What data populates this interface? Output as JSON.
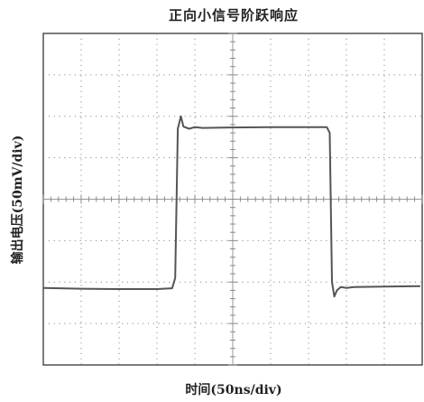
{
  "chart_data": {
    "type": "line",
    "title": "正向小信号阶跃响应",
    "xlabel": "时间(50ns/div)",
    "ylabel": "输出电压(50mV/div)",
    "x_unit": "div",
    "y_unit": "div",
    "xlim": [
      0,
      10
    ],
    "ylim": [
      -4,
      4
    ],
    "grid": "dotted oscilloscope graticule with center crosshair",
    "line_color": "#555555",
    "series": [
      {
        "x": [
          0,
          1,
          2,
          3,
          3.4,
          3.48,
          3.55,
          3.63,
          3.7,
          3.85,
          4.0,
          4.2,
          5.0,
          6.0,
          7.0,
          7.48,
          7.56,
          7.62,
          7.68,
          7.75,
          7.85,
          8.0,
          8.2,
          9.0,
          9.95
        ],
        "y": [
          -2.14,
          -2.16,
          -2.17,
          -2.17,
          -2.15,
          -1.9,
          1.7,
          2.0,
          1.75,
          1.7,
          1.74,
          1.72,
          1.73,
          1.74,
          1.74,
          1.74,
          1.6,
          -2.0,
          -2.35,
          -2.2,
          -2.12,
          -2.14,
          -2.12,
          -2.11,
          -2.1
        ]
      }
    ]
  }
}
